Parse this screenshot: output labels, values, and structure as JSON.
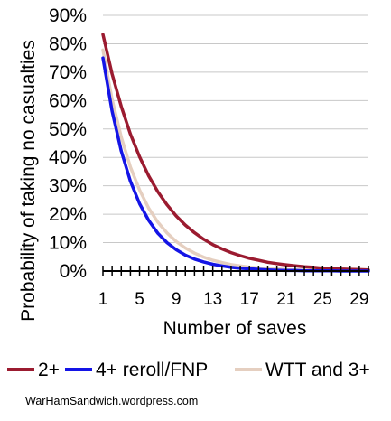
{
  "chart_data": {
    "type": "line",
    "title": "",
    "xlabel": "Number of saves",
    "ylabel": "Probability of taking no casualties",
    "xlim": [
      1,
      30
    ],
    "ylim": [
      0,
      90
    ],
    "x_ticks": [
      1,
      5,
      9,
      13,
      17,
      21,
      25,
      29
    ],
    "x_tick_labels": [
      "1",
      "5",
      "9",
      "13",
      "17",
      "21",
      "25",
      "29"
    ],
    "y_ticks": [
      0,
      10,
      20,
      30,
      40,
      50,
      60,
      70,
      80,
      90
    ],
    "y_tick_labels": [
      "0%",
      "10%",
      "20%",
      "30%",
      "40%",
      "50%",
      "60%",
      "70%",
      "80%",
      "90%"
    ],
    "grid": true,
    "legend_position": "bottom",
    "x": [
      1,
      2,
      3,
      4,
      5,
      6,
      7,
      8,
      9,
      10,
      11,
      12,
      13,
      14,
      15,
      16,
      17,
      18,
      19,
      20,
      21,
      22,
      23,
      24,
      25,
      26,
      27,
      28,
      29,
      30
    ],
    "series": [
      {
        "name": "2+",
        "color": "#9b1b30",
        "values": [
          83.3,
          69.4,
          57.9,
          48.2,
          40.2,
          33.5,
          27.9,
          23.3,
          19.4,
          16.2,
          13.5,
          11.2,
          9.3,
          7.8,
          6.5,
          5.4,
          4.5,
          3.8,
          3.1,
          2.6,
          2.2,
          1.8,
          1.5,
          1.3,
          1.0,
          0.9,
          0.7,
          0.6,
          0.5,
          0.4
        ]
      },
      {
        "name": "4+ reroll/FNP",
        "color": "#1414e6",
        "values": [
          75.0,
          56.3,
          42.2,
          31.6,
          23.7,
          17.8,
          13.3,
          10.0,
          7.5,
          5.6,
          4.2,
          3.2,
          2.4,
          1.8,
          1.3,
          1.0,
          0.8,
          0.6,
          0.4,
          0.3,
          0.2,
          0.2,
          0.1,
          0.1,
          0.1,
          0.1,
          0.0,
          0.0,
          0.0,
          0.0
        ]
      },
      {
        "name": "WTT and 3+",
        "color": "#e5cfc0",
        "values": [
          77.8,
          60.5,
          47.1,
          36.6,
          28.5,
          22.1,
          17.2,
          13.4,
          10.4,
          8.1,
          6.3,
          4.9,
          3.8,
          3.0,
          2.3,
          1.8,
          1.4,
          1.1,
          0.8,
          0.7,
          0.5,
          0.4,
          0.3,
          0.2,
          0.2,
          0.1,
          0.1,
          0.1,
          0.1,
          0.1
        ]
      }
    ]
  },
  "credit": "WarHamSandwich.wordpress.com"
}
